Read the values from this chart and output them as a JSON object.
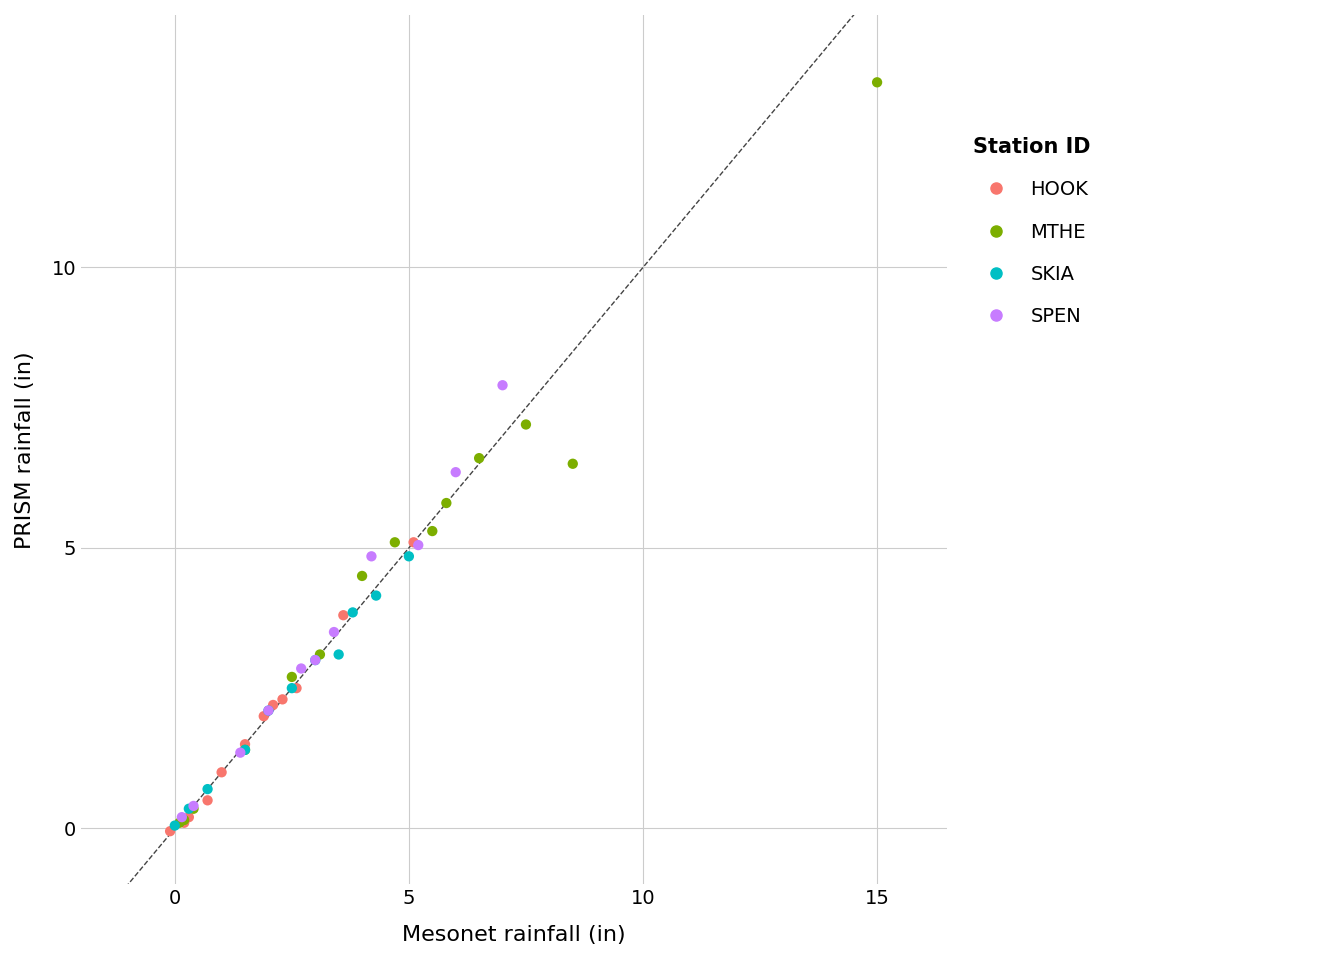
{
  "stations": {
    "HOOK": {
      "color": "#F8766D",
      "mesonet": [
        -0.1,
        0.2,
        0.3,
        0.7,
        1.0,
        1.5,
        1.9,
        2.1,
        2.3,
        2.6,
        3.6,
        5.1
      ],
      "prism": [
        -0.05,
        0.1,
        0.2,
        0.5,
        1.0,
        1.5,
        2.0,
        2.2,
        2.3,
        2.5,
        3.8,
        5.1
      ]
    },
    "MTHE": {
      "color": "#7CAE00",
      "mesonet": [
        0.1,
        0.2,
        0.4,
        1.5,
        2.5,
        3.1,
        4.0,
        4.7,
        5.5,
        5.8,
        6.5,
        7.5,
        8.5,
        15.0
      ],
      "prism": [
        0.1,
        0.15,
        0.35,
        1.4,
        2.7,
        3.1,
        4.5,
        5.1,
        5.3,
        5.8,
        6.6,
        7.2,
        6.5,
        13.3
      ]
    },
    "SKIA": {
      "color": "#00BFC4",
      "mesonet": [
        0.0,
        0.3,
        0.7,
        1.5,
        2.0,
        2.5,
        3.0,
        3.5,
        3.8,
        4.3,
        5.0
      ],
      "prism": [
        0.05,
        0.35,
        0.7,
        1.4,
        2.1,
        2.5,
        3.0,
        3.1,
        3.85,
        4.15,
        4.85
      ]
    },
    "SPEN": {
      "color": "#C77CFF",
      "mesonet": [
        0.15,
        0.4,
        1.4,
        2.0,
        2.7,
        3.0,
        3.4,
        4.2,
        5.2,
        6.0,
        7.0
      ],
      "prism": [
        0.2,
        0.4,
        1.35,
        2.1,
        2.85,
        3.0,
        3.5,
        4.85,
        5.05,
        6.35,
        7.9
      ]
    }
  },
  "xlabel": "Mesonet rainfall (in)",
  "ylabel": "PRISM rainfall (in)",
  "xlim": [
    -2.0,
    16.5
  ],
  "ylim": [
    -1.0,
    14.5
  ],
  "xticks": [
    0,
    5,
    10,
    15
  ],
  "yticks": [
    0,
    5,
    10
  ],
  "legend_title": "Station ID",
  "background_color": "#ffffff",
  "panel_background": "#ffffff",
  "grid_color": "#cccccc",
  "diag_color": "#444444",
  "marker_size": 55,
  "font_size_label": 16,
  "font_size_tick": 14,
  "font_size_legend_title": 15,
  "font_size_legend": 14
}
